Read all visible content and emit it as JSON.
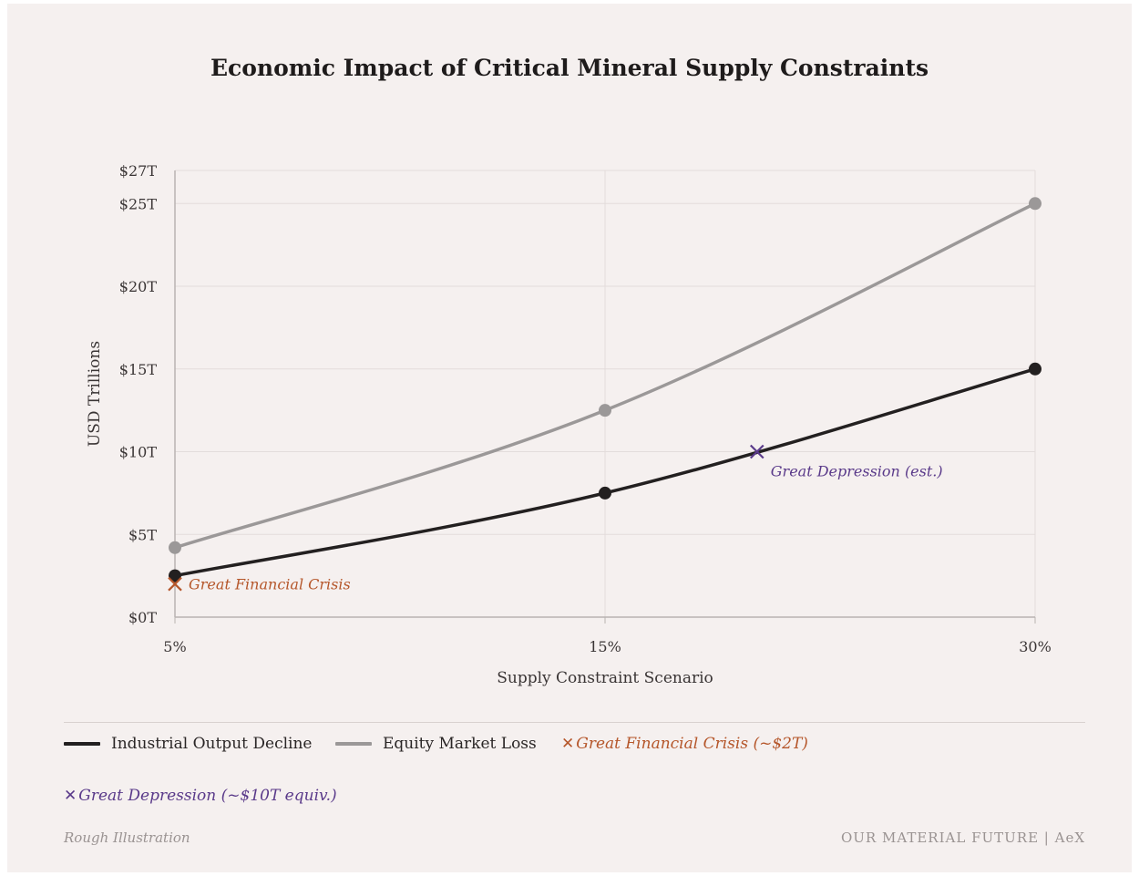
{
  "title": "Economic Impact of Critical Mineral Supply Constraints",
  "colors": {
    "background": "#f5f0ef",
    "industrial": "#232020",
    "equity": "#9b9898",
    "gfc": "#b5562a",
    "depression": "#5a3a8a",
    "grid": "#e3dcdb",
    "axis": "#b9b3b2"
  },
  "chart_data": {
    "type": "line",
    "title": "Economic Impact of Critical Mineral Supply Constraints",
    "xlabel": "Supply Constraint Scenario",
    "ylabel": "USD Trillions",
    "x_ticks": [
      "5%",
      "15%",
      "30%"
    ],
    "x": [
      5,
      15,
      30
    ],
    "y_ticks": [
      "$0T",
      "$5T",
      "$10T",
      "$15T",
      "$20T",
      "$25T",
      "$27T"
    ],
    "y_tick_values": [
      0,
      5,
      10,
      15,
      20,
      25,
      27
    ],
    "ylim": [
      0,
      27
    ],
    "grid": true,
    "series": [
      {
        "name": "Industrial Output Decline",
        "x": [
          5,
          15,
          30
        ],
        "values": [
          2.5,
          7.5,
          15
        ]
      },
      {
        "name": "Equity Market Loss",
        "x": [
          5,
          15,
          30
        ],
        "values": [
          4.2,
          12.5,
          25
        ]
      }
    ],
    "annotations": [
      {
        "label": "Great Financial Crisis",
        "x": 5,
        "y": 2,
        "marker": "x"
      },
      {
        "label": "Great Depression (est.)",
        "x": 20.3,
        "y": 10,
        "marker": "x"
      }
    ]
  },
  "legend": {
    "industrial": "Industrial Output Decline",
    "equity": "Equity Market Loss",
    "gfc": "Great Financial Crisis (~$2T)",
    "depression": "Great Depression (~$10T equiv.)",
    "x_glyph": "✕"
  },
  "footer": {
    "left": "Rough Illustration",
    "right": "OUR MATERIAL FUTURE | AeX"
  }
}
